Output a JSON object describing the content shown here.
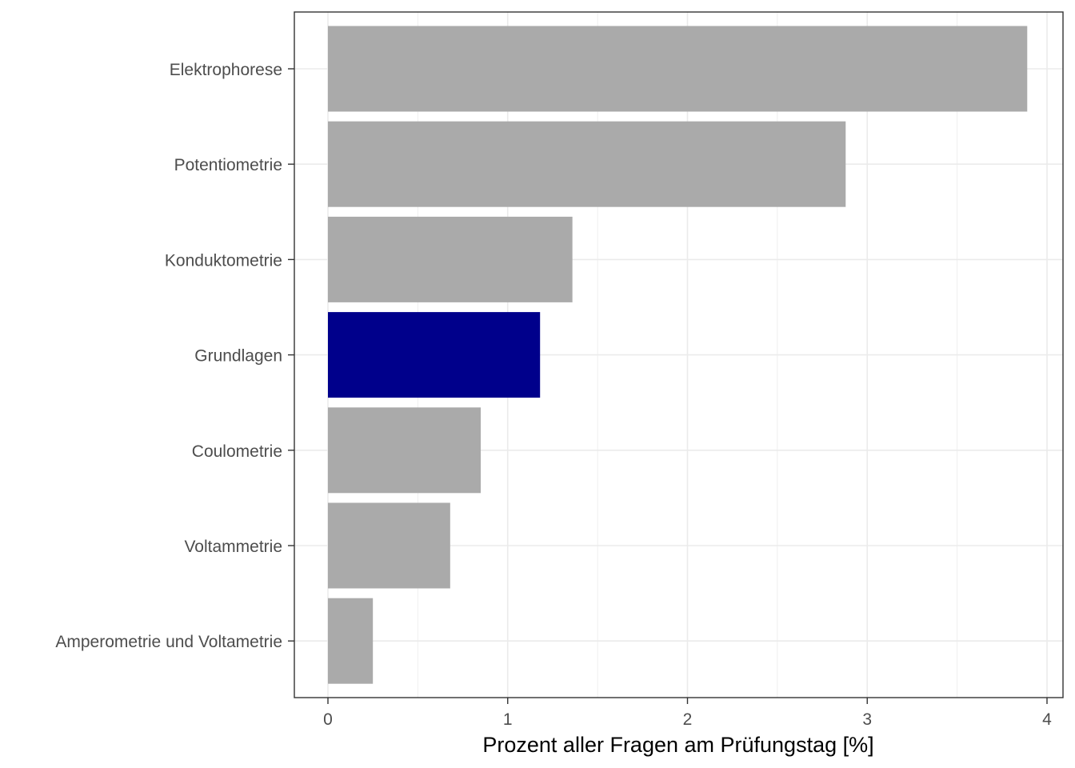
{
  "chart_data": {
    "type": "bar",
    "orientation": "horizontal",
    "categories": [
      "Elektrophorese",
      "Potentiometrie",
      "Konduktometrie",
      "Grundlagen",
      "Coulometrie",
      "Voltammetrie",
      "Amperometrie und Voltametrie"
    ],
    "values": [
      3.89,
      2.88,
      1.36,
      1.18,
      0.85,
      0.68,
      0.25
    ],
    "highlight": "Grundlagen",
    "colors": {
      "default": "#aaaaaa",
      "highlight": "#00008b",
      "grid": "#ebebeb",
      "panel_border": "#333333"
    },
    "title": "",
    "xlabel": "Prozent aller Fragen am Prüfungstag [%]",
    "ylabel": "",
    "xlim": [
      0,
      4.0
    ],
    "xticks": [
      "0",
      "1",
      "2",
      "3",
      "4"
    ],
    "grid": true,
    "legend": "none"
  }
}
